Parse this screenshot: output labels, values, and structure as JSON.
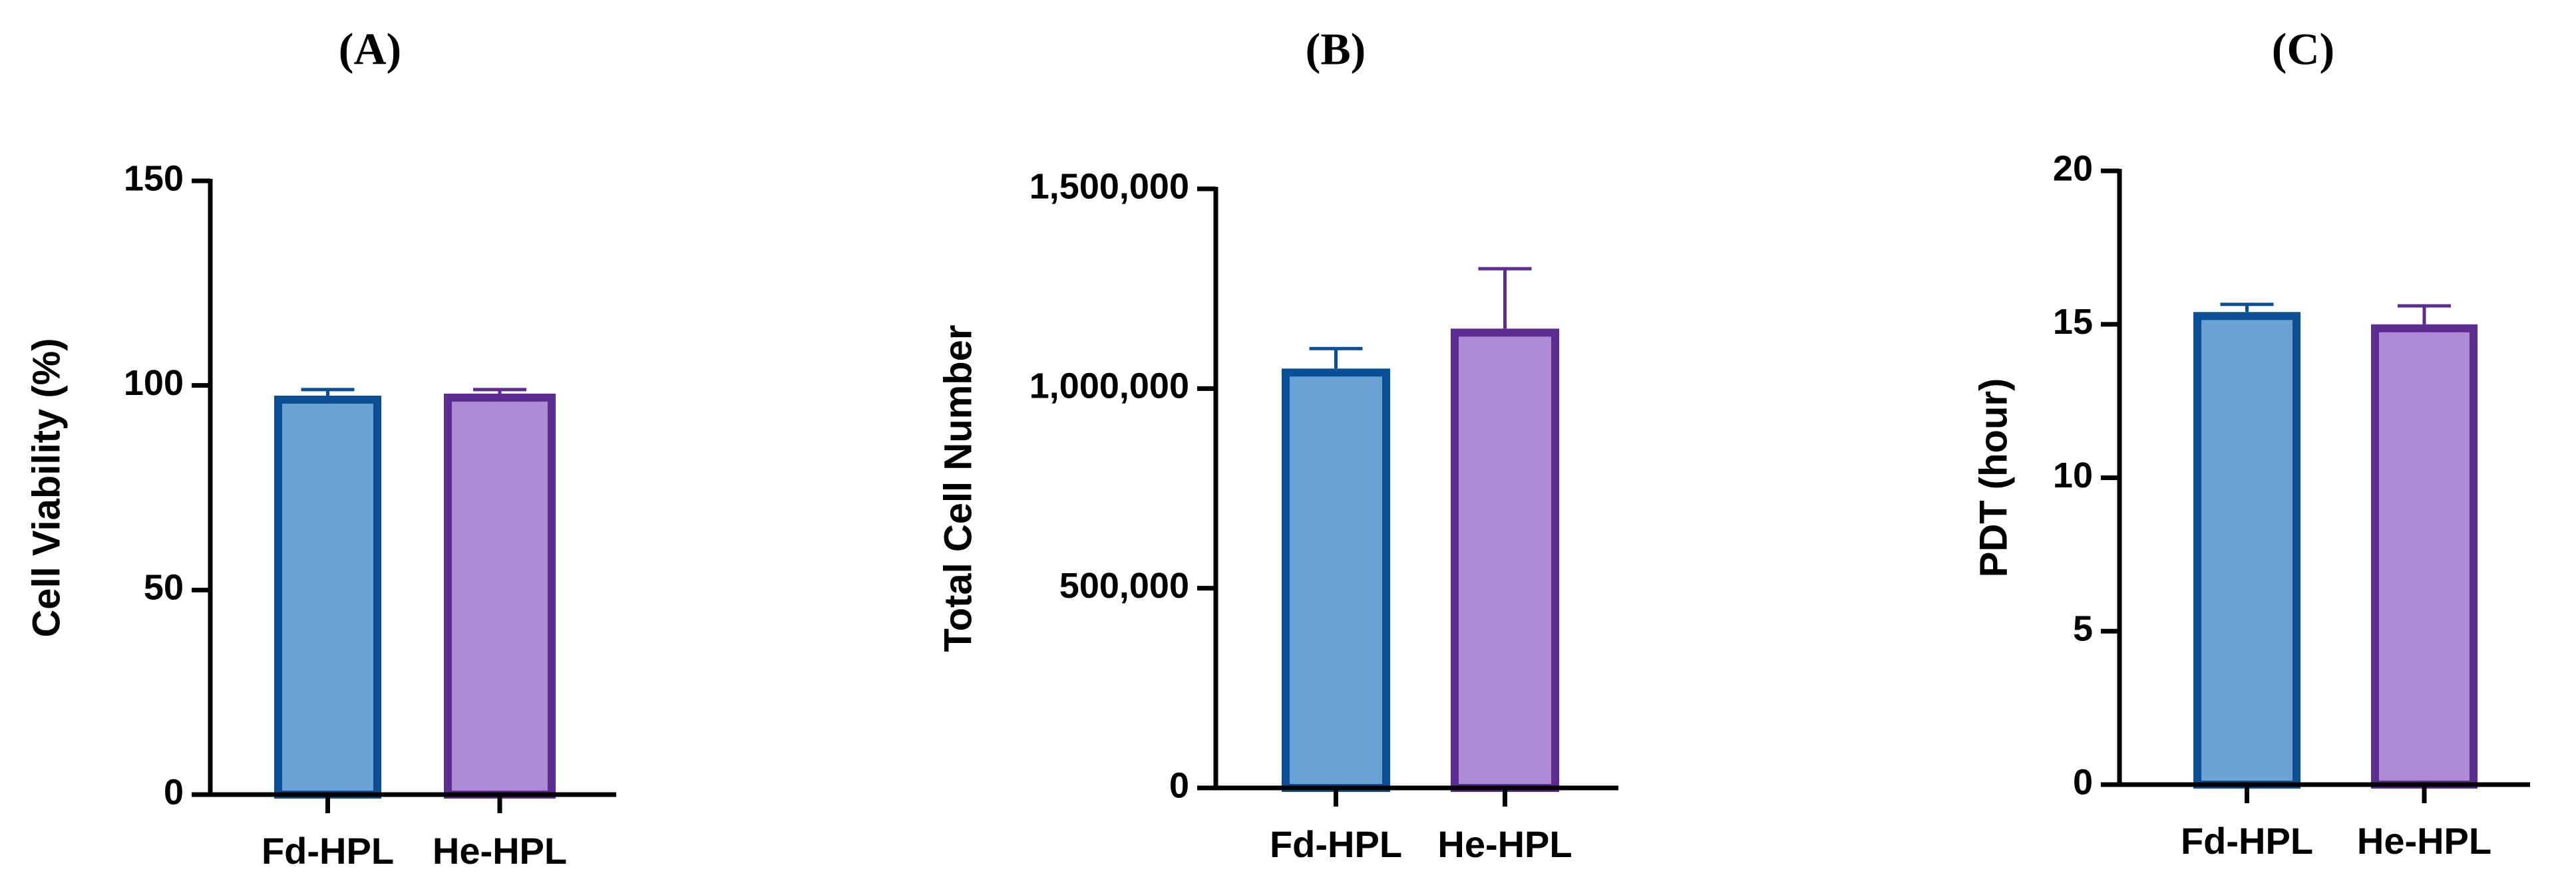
{
  "chart_data": [
    {
      "type": "bar",
      "title": "(A)",
      "y_label": "Cell Viability (%)",
      "categories": [
        "Fd-HPL",
        "He-HPL"
      ],
      "values": [
        97.5,
        98
      ],
      "errors": [
        1.5,
        1
      ],
      "colors": [
        "#6aa2d6",
        "#ad8bd6"
      ],
      "edgecolors": [
        "#0a4f93",
        "#5b2d91"
      ],
      "ylim": [
        0,
        150
      ],
      "yticks": [
        0,
        50,
        100,
        150
      ]
    },
    {
      "type": "bar",
      "title": "(B)",
      "y_label": "Total Cell Number",
      "categories": [
        "Fd-HPL",
        "He-HPL"
      ],
      "values": [
        1050000,
        1150000
      ],
      "errors": [
        50000,
        150000
      ],
      "colors": [
        "#6aa2d6",
        "#ad8bd6"
      ],
      "edgecolors": [
        "#0a4f93",
        "#5b2d91"
      ],
      "ylim": [
        0,
        1500000
      ],
      "yticks": [
        0,
        {
          "value": 500000,
          "label": "500,000"
        },
        {
          "value": 1000000,
          "label": "1,000,000"
        },
        {
          "value": 1500000,
          "label": "1,500,000"
        }
      ]
    },
    {
      "type": "bar",
      "title": "(C)",
      "y_label": "PDT (hour)",
      "categories": [
        "Fd-HPL",
        "He-HPL"
      ],
      "values": [
        15.4,
        15.0
      ],
      "errors": [
        0.25,
        0.6
      ],
      "colors": [
        "#6aa2d6",
        "#ad8bd6"
      ],
      "edgecolors": [
        "#0a4f93",
        "#5b2d91"
      ],
      "ylim": [
        0,
        20
      ],
      "yticks": [
        0,
        5,
        10,
        15,
        20
      ]
    }
  ]
}
